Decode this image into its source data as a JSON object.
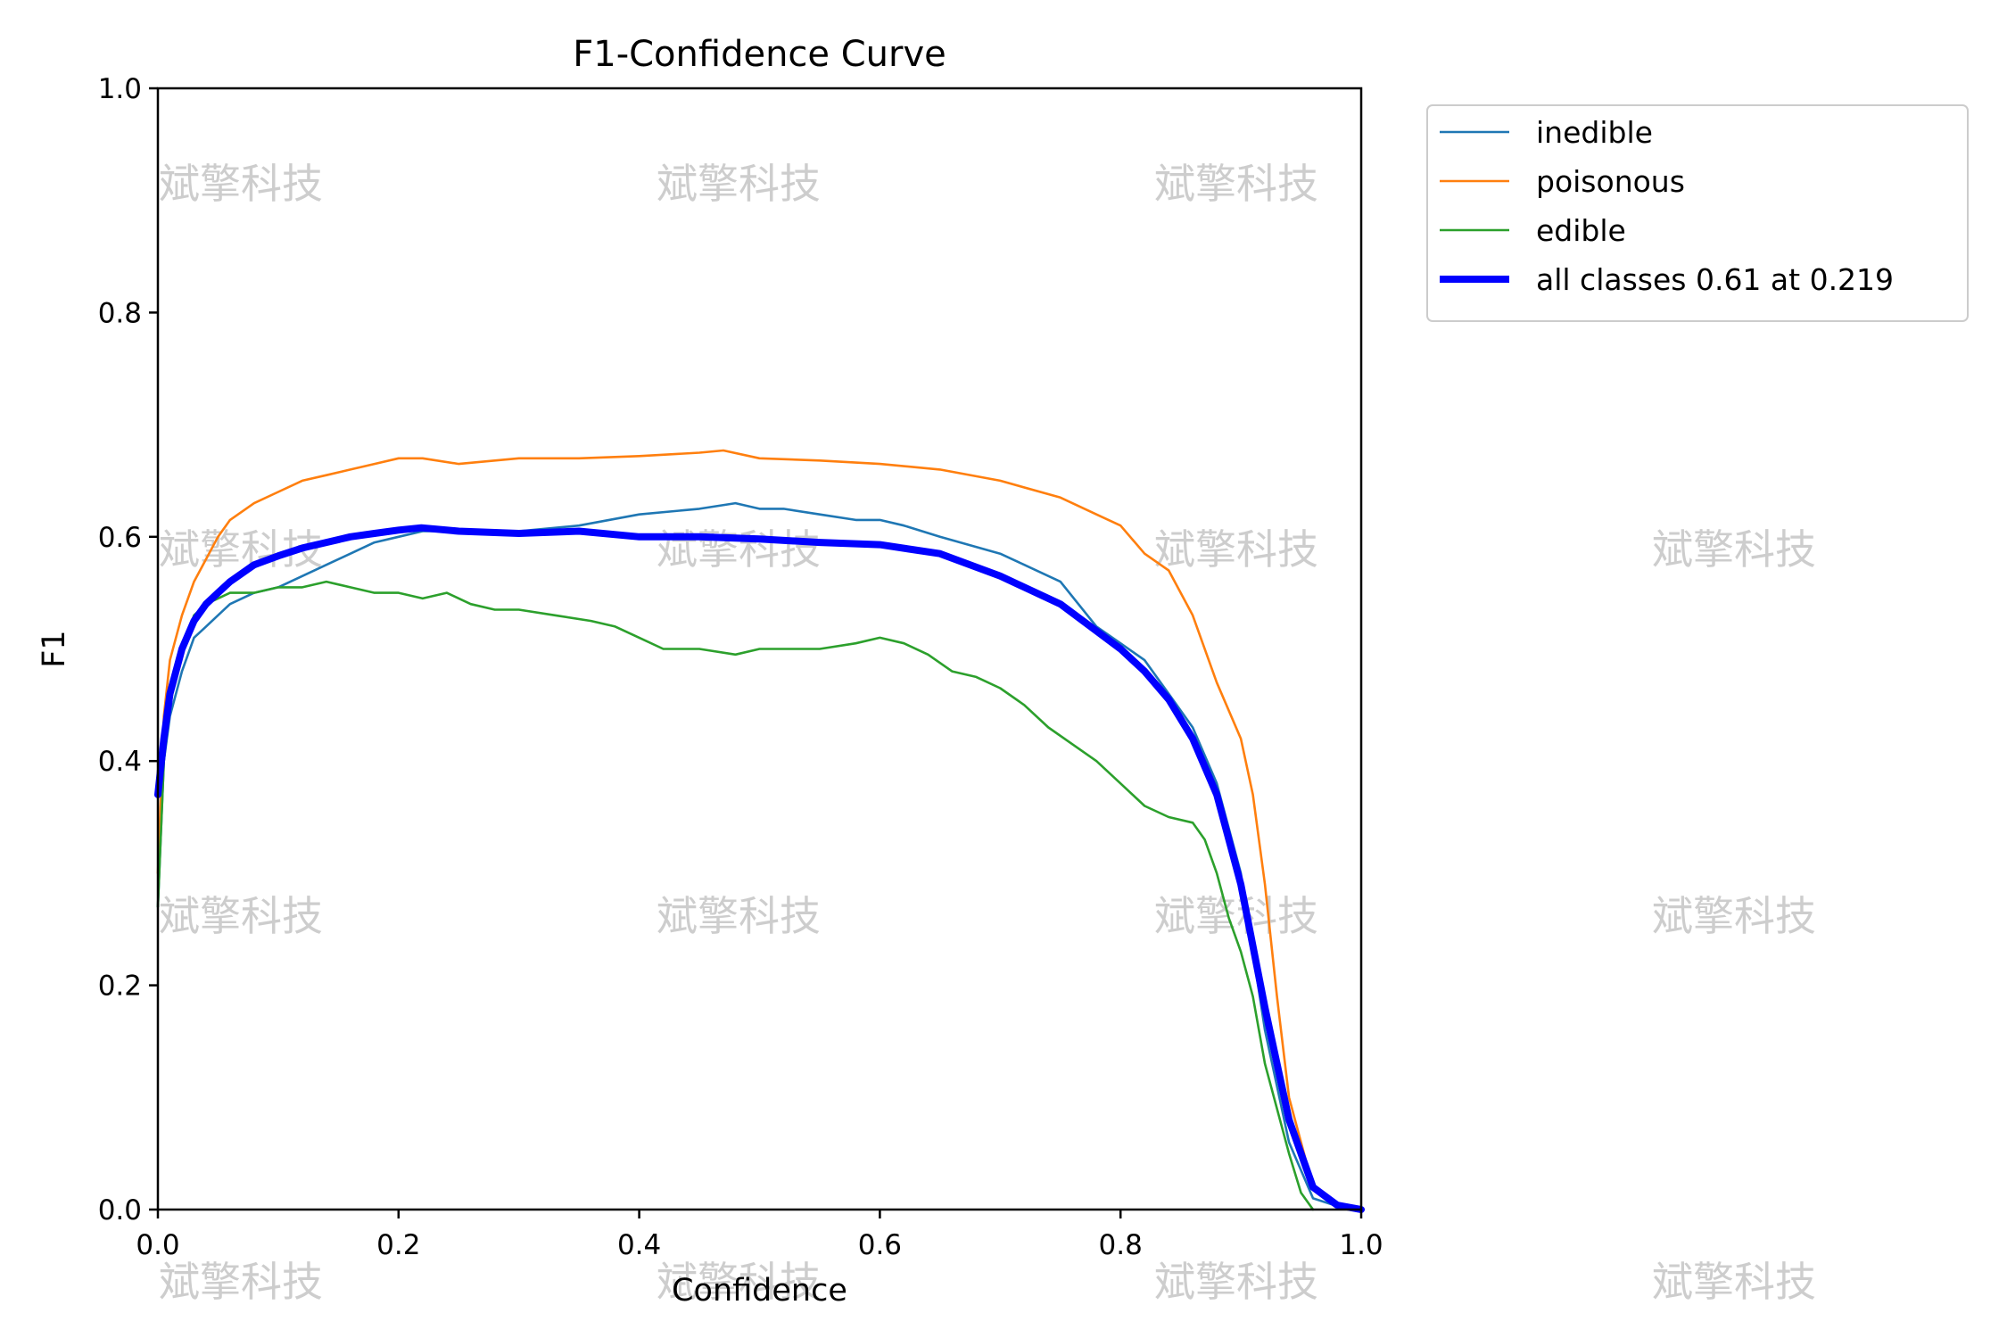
{
  "chart_data": {
    "type": "line",
    "title": "F1-Confidence Curve",
    "xlabel": "Confidence",
    "ylabel": "F1",
    "xlim": [
      0,
      1
    ],
    "ylim": [
      0,
      1
    ],
    "xticks": [
      "0.0",
      "0.2",
      "0.4",
      "0.6",
      "0.8",
      "1.0"
    ],
    "yticks": [
      "0.0",
      "0.2",
      "0.4",
      "0.6",
      "0.8",
      "1.0"
    ],
    "grid": false,
    "legend_position": "outside-top-right",
    "watermark_text": "斌擎科技",
    "series": [
      {
        "name": "inedible",
        "color": "#1f77b4",
        "width": "thin",
        "x": [
          0.0,
          0.005,
          0.01,
          0.02,
          0.03,
          0.04,
          0.05,
          0.06,
          0.08,
          0.1,
          0.12,
          0.14,
          0.16,
          0.18,
          0.2,
          0.22,
          0.25,
          0.3,
          0.35,
          0.4,
          0.45,
          0.48,
          0.5,
          0.52,
          0.55,
          0.58,
          0.6,
          0.62,
          0.65,
          0.7,
          0.72,
          0.75,
          0.78,
          0.8,
          0.82,
          0.84,
          0.86,
          0.88,
          0.9,
          0.92,
          0.94,
          0.96,
          0.98,
          1.0
        ],
        "y": [
          0.27,
          0.4,
          0.44,
          0.48,
          0.51,
          0.52,
          0.53,
          0.54,
          0.55,
          0.555,
          0.565,
          0.575,
          0.585,
          0.595,
          0.6,
          0.605,
          0.605,
          0.605,
          0.61,
          0.62,
          0.625,
          0.63,
          0.625,
          0.625,
          0.62,
          0.615,
          0.615,
          0.61,
          0.6,
          0.585,
          0.575,
          0.56,
          0.52,
          0.505,
          0.49,
          0.46,
          0.43,
          0.38,
          0.3,
          0.16,
          0.06,
          0.01,
          0.003,
          0.0
        ]
      },
      {
        "name": "poisonous",
        "color": "#ff7f0e",
        "width": "thin",
        "x": [
          0.0,
          0.005,
          0.01,
          0.02,
          0.03,
          0.04,
          0.05,
          0.06,
          0.08,
          0.1,
          0.12,
          0.14,
          0.16,
          0.18,
          0.2,
          0.22,
          0.25,
          0.3,
          0.35,
          0.4,
          0.45,
          0.47,
          0.5,
          0.55,
          0.6,
          0.65,
          0.7,
          0.75,
          0.78,
          0.8,
          0.82,
          0.84,
          0.86,
          0.88,
          0.9,
          0.91,
          0.92,
          0.93,
          0.94,
          0.96,
          0.98,
          1.0
        ],
        "y": [
          0.3,
          0.44,
          0.49,
          0.53,
          0.56,
          0.58,
          0.6,
          0.615,
          0.63,
          0.64,
          0.65,
          0.655,
          0.66,
          0.665,
          0.67,
          0.67,
          0.665,
          0.67,
          0.67,
          0.672,
          0.675,
          0.677,
          0.67,
          0.668,
          0.665,
          0.66,
          0.65,
          0.635,
          0.62,
          0.61,
          0.585,
          0.57,
          0.53,
          0.47,
          0.42,
          0.37,
          0.29,
          0.19,
          0.1,
          0.02,
          0.003,
          0.0
        ]
      },
      {
        "name": "edible",
        "color": "#2ca02c",
        "width": "thin",
        "x": [
          0.0,
          0.005,
          0.01,
          0.02,
          0.03,
          0.04,
          0.05,
          0.06,
          0.08,
          0.1,
          0.12,
          0.14,
          0.16,
          0.18,
          0.2,
          0.22,
          0.24,
          0.26,
          0.28,
          0.3,
          0.33,
          0.36,
          0.38,
          0.4,
          0.42,
          0.45,
          0.48,
          0.5,
          0.55,
          0.58,
          0.6,
          0.62,
          0.64,
          0.66,
          0.68,
          0.7,
          0.72,
          0.74,
          0.76,
          0.78,
          0.8,
          0.82,
          0.84,
          0.86,
          0.87,
          0.88,
          0.89,
          0.9,
          0.91,
          0.92,
          0.93,
          0.94,
          0.95,
          0.96
        ],
        "y": [
          0.27,
          0.4,
          0.45,
          0.5,
          0.53,
          0.54,
          0.545,
          0.55,
          0.55,
          0.555,
          0.555,
          0.56,
          0.555,
          0.55,
          0.55,
          0.545,
          0.55,
          0.54,
          0.535,
          0.535,
          0.53,
          0.525,
          0.52,
          0.51,
          0.5,
          0.5,
          0.495,
          0.5,
          0.5,
          0.505,
          0.51,
          0.505,
          0.495,
          0.48,
          0.475,
          0.465,
          0.45,
          0.43,
          0.415,
          0.4,
          0.38,
          0.36,
          0.35,
          0.345,
          0.33,
          0.3,
          0.26,
          0.23,
          0.19,
          0.13,
          0.09,
          0.05,
          0.015,
          0.0
        ]
      },
      {
        "name": "all classes 0.61 at 0.219",
        "color": "#0000ff",
        "width": "thick",
        "x": [
          0.0,
          0.005,
          0.01,
          0.02,
          0.03,
          0.04,
          0.05,
          0.06,
          0.08,
          0.1,
          0.12,
          0.14,
          0.16,
          0.18,
          0.2,
          0.219,
          0.25,
          0.3,
          0.35,
          0.4,
          0.45,
          0.5,
          0.55,
          0.6,
          0.65,
          0.7,
          0.75,
          0.8,
          0.82,
          0.84,
          0.86,
          0.88,
          0.9,
          0.92,
          0.94,
          0.96,
          0.98,
          1.0
        ],
        "y": [
          0.37,
          0.42,
          0.46,
          0.5,
          0.525,
          0.54,
          0.55,
          0.56,
          0.575,
          0.583,
          0.59,
          0.595,
          0.6,
          0.603,
          0.606,
          0.608,
          0.605,
          0.603,
          0.605,
          0.6,
          0.6,
          0.598,
          0.595,
          0.593,
          0.585,
          0.565,
          0.54,
          0.5,
          0.48,
          0.455,
          0.42,
          0.37,
          0.29,
          0.18,
          0.08,
          0.02,
          0.004,
          0.0
        ]
      }
    ]
  }
}
